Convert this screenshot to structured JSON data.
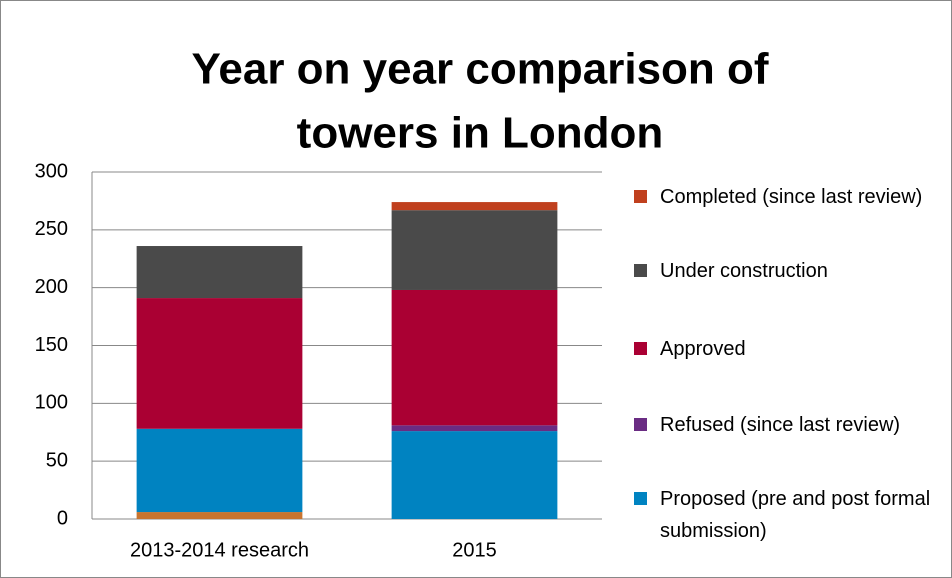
{
  "chart_data": {
    "type": "bar",
    "stacked": true,
    "title": [
      "Year on year comparison  of",
      "towers in London"
    ],
    "categories": [
      "2013-2014 research",
      "2015"
    ],
    "series": [
      {
        "color": "#c8742f",
        "values": [
          6,
          0
        ]
      },
      {
        "name": "Proposed (pre and post formal submission)",
        "color": "#0083c1",
        "values": [
          72,
          76
        ]
      },
      {
        "name": "Refused (since last review)",
        "color": "#6a2c83",
        "values": [
          0,
          5
        ]
      },
      {
        "name": "Approved",
        "color": "#aa0033",
        "values": [
          113,
          117
        ]
      },
      {
        "name": "Under construction",
        "color": "#4a4a4a",
        "values": [
          45,
          69
        ]
      },
      {
        "name": "Completed (since last review)",
        "color": "#c0401e",
        "values": [
          0,
          7
        ]
      }
    ],
    "ylim": [
      0,
      300
    ],
    "yticks": [
      0,
      50,
      100,
      150,
      200,
      250,
      300
    ],
    "grid": true,
    "legend": "right"
  }
}
